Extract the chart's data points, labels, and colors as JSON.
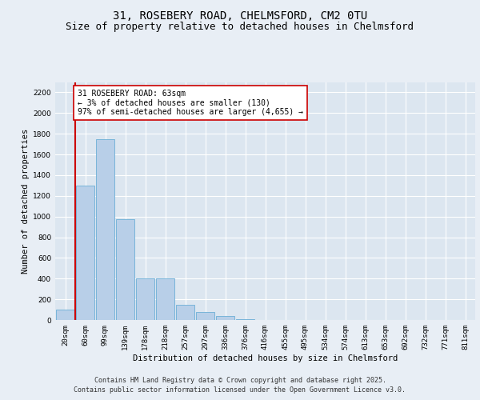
{
  "title_line1": "31, ROSEBERY ROAD, CHELMSFORD, CM2 0TU",
  "title_line2": "Size of property relative to detached houses in Chelmsford",
  "xlabel": "Distribution of detached houses by size in Chelmsford",
  "ylabel": "Number of detached properties",
  "categories": [
    "20sqm",
    "60sqm",
    "99sqm",
    "139sqm",
    "178sqm",
    "218sqm",
    "257sqm",
    "297sqm",
    "336sqm",
    "376sqm",
    "416sqm",
    "455sqm",
    "495sqm",
    "534sqm",
    "574sqm",
    "613sqm",
    "653sqm",
    "692sqm",
    "732sqm",
    "771sqm",
    "811sqm"
  ],
  "values": [
    100,
    1300,
    1750,
    975,
    400,
    400,
    150,
    80,
    40,
    10,
    0,
    0,
    0,
    0,
    0,
    0,
    0,
    0,
    0,
    0,
    0
  ],
  "bar_color": "#b8cfe8",
  "bar_edge_color": "#6baed6",
  "vline_color": "#cc0000",
  "annotation_text": "31 ROSEBERY ROAD: 63sqm\n← 3% of detached houses are smaller (130)\n97% of semi-detached houses are larger (4,655) →",
  "annotation_box_color": "#ffffff",
  "annotation_box_edge": "#cc0000",
  "ylim": [
    0,
    2300
  ],
  "yticks": [
    0,
    200,
    400,
    600,
    800,
    1000,
    1200,
    1400,
    1600,
    1800,
    2000,
    2200
  ],
  "bg_color": "#e8eef5",
  "plot_bg_color": "#dce6f0",
  "footer_line1": "Contains HM Land Registry data © Crown copyright and database right 2025.",
  "footer_line2": "Contains public sector information licensed under the Open Government Licence v3.0.",
  "title_fontsize": 10,
  "subtitle_fontsize": 9,
  "axis_label_fontsize": 7.5,
  "tick_fontsize": 6.5,
  "annotation_fontsize": 7,
  "footer_fontsize": 6
}
